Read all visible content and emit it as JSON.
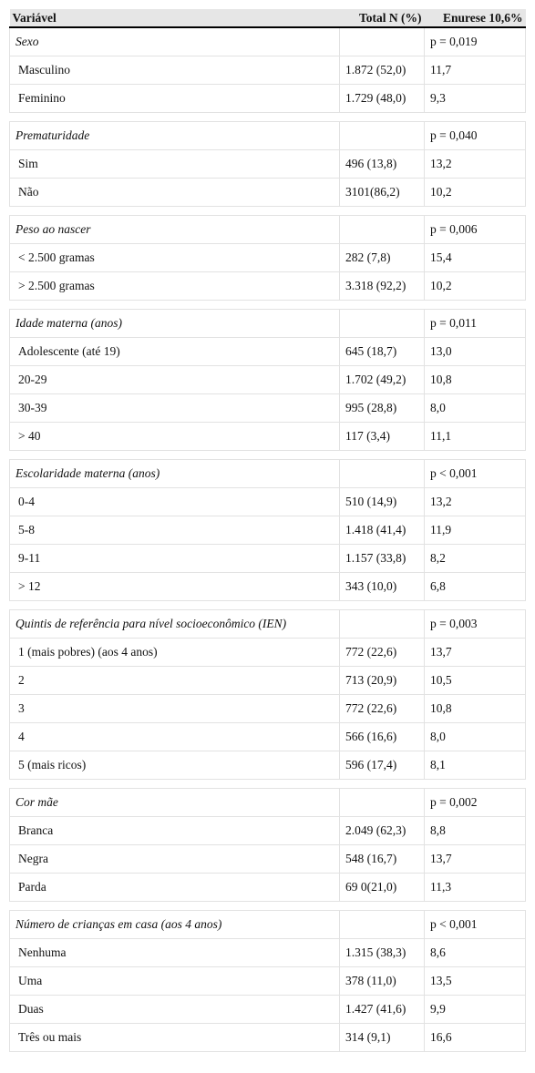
{
  "table": {
    "headers": [
      "Variável",
      "Total N (%)",
      "Enurese 10,6%"
    ],
    "groups": [
      {
        "title": "Sexo",
        "p": "p = 0,019",
        "rows": [
          [
            "Masculino",
            "1.872 (52,0)",
            "11,7"
          ],
          [
            "Feminino",
            "1.729 (48,0)",
            "9,3"
          ]
        ]
      },
      {
        "title": "Prematuridade",
        "p": "p = 0,040",
        "rows": [
          [
            "Sim",
            "496 (13,8)",
            "13,2"
          ],
          [
            "Não",
            "3101(86,2)",
            "10,2"
          ]
        ]
      },
      {
        "title": "Peso ao nascer",
        "p": "p = 0,006",
        "rows": [
          [
            "< 2.500 gramas",
            "282 (7,8)",
            "15,4"
          ],
          [
            "> 2.500 gramas",
            "3.318 (92,2)",
            "10,2"
          ]
        ]
      },
      {
        "title": "Idade materna (anos)",
        "p": "p = 0,011",
        "rows": [
          [
            "Adolescente (até 19)",
            "645 (18,7)",
            "13,0"
          ],
          [
            "20-29",
            "1.702 (49,2)",
            "10,8"
          ],
          [
            "30-39",
            "995 (28,8)",
            "8,0"
          ],
          [
            "> 40",
            "117 (3,4)",
            "11,1"
          ]
        ]
      },
      {
        "title": "Escolaridade materna (anos)",
        "p": "p < 0,001",
        "rows": [
          [
            "0-4",
            "510 (14,9)",
            "13,2"
          ],
          [
            "5-8",
            "1.418 (41,4)",
            "11,9"
          ],
          [
            "9-11",
            "1.157 (33,8)",
            "8,2"
          ],
          [
            "> 12",
            "343 (10,0)",
            "6,8"
          ]
        ]
      },
      {
        "title": "Quintis de referência para nível socioeconômico (IEN)",
        "p": "p = 0,003",
        "rows": [
          [
            "1 (mais pobres) (aos 4 anos)",
            "772 (22,6)",
            "13,7"
          ],
          [
            "2",
            "713 (20,9)",
            "10,5"
          ],
          [
            "3",
            "772 (22,6)",
            "10,8"
          ],
          [
            "4",
            "566 (16,6)",
            "8,0"
          ],
          [
            "5 (mais ricos)",
            "596 (17,4)",
            "8,1"
          ]
        ]
      },
      {
        "title": "Cor mãe",
        "p": "p = 0,002",
        "rows": [
          [
            "Branca",
            "2.049 (62,3)",
            "8,8"
          ],
          [
            "Negra",
            "548 (16,7)",
            "13,7"
          ],
          [
            "Parda",
            "69 0(21,0)",
            "11,3"
          ]
        ]
      },
      {
        "title": "Número de crianças em casa (aos 4 anos)",
        "p": "p < 0,001",
        "rows": [
          [
            "Nenhuma",
            "1.315 (38,3)",
            "8,6"
          ],
          [
            "Uma",
            "378 (11,0)",
            "13,5"
          ],
          [
            "Duas",
            "1.427 (41,6)",
            "9,9"
          ],
          [
            "Três ou mais",
            "314 (9,1)",
            "16,6"
          ]
        ]
      }
    ]
  }
}
